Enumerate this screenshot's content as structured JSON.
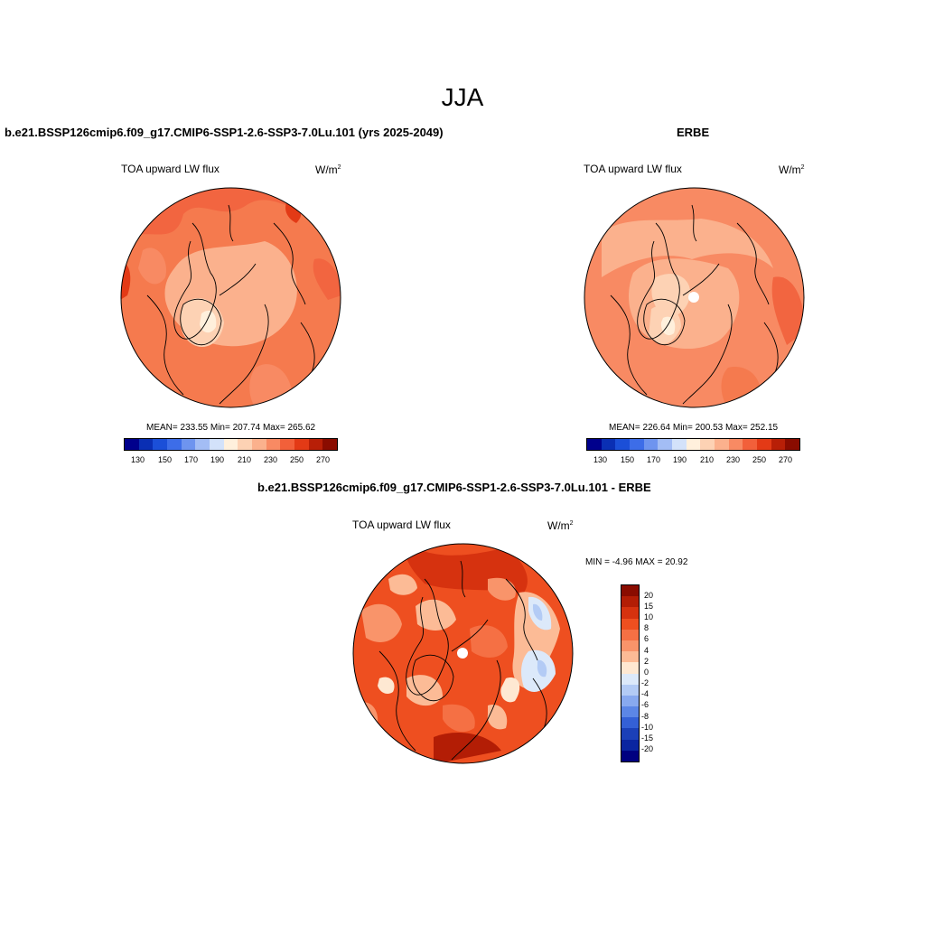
{
  "season": "JJA",
  "panels": [
    {
      "title": "b.e21.BSSP126cmip6.f09_g17.CMIP6-SSP1-2.6-SSP3-7.0Lu.101 (yrs 2025-2049)",
      "variable": "TOA upward LW flux",
      "units_base": "W/m",
      "units_exp": "2",
      "stats": "MEAN= 233.55  Min= 207.74  Max= 265.62",
      "tick_labels": [
        "130",
        "150",
        "170",
        "190",
        "210",
        "230",
        "250",
        "270"
      ]
    },
    {
      "title": "ERBE",
      "variable": "TOA upward LW flux",
      "units_base": "W/m",
      "units_exp": "2",
      "stats": "MEAN= 226.64  Min= 200.53  Max= 252.15",
      "tick_labels": [
        "130",
        "150",
        "170",
        "190",
        "210",
        "230",
        "250",
        "270"
      ]
    },
    {
      "title": "b.e21.BSSP126cmip6.f09_g17.CMIP6-SSP1-2.6-SSP3-7.0Lu.101 - ERBE",
      "variable": "TOA upward LW flux",
      "units_base": "W/m",
      "units_exp": "2",
      "stats": "MIN =  -4.96 MAX =  20.92",
      "tick_labels": [
        "20",
        "15",
        "10",
        "8",
        "6",
        "4",
        "2",
        "0",
        "-2",
        "-4",
        "-6",
        "-8",
        "-10",
        "-15",
        "-20"
      ]
    }
  ],
  "colors": {
    "abs_scale": [
      "#00008c",
      "#0a2fb4",
      "#1b4fd8",
      "#3d6de8",
      "#6e94ef",
      "#a3bdf5",
      "#d3e2fa",
      "#fff0dc",
      "#fdd2b4",
      "#fbb18d",
      "#f88a63",
      "#f2603a",
      "#e33a16",
      "#b81f07",
      "#8a0c00"
    ],
    "diff_scale": [
      "#8a0c00",
      "#b31d05",
      "#d6320f",
      "#ee4f20",
      "#f57044",
      "#f9946a",
      "#fcbb96",
      "#fee8d2",
      "#dce9fa",
      "#b3cbf5",
      "#88a9ef",
      "#5c86e6",
      "#3460d6",
      "#1b40b8",
      "#0a25a0",
      "#000080"
    ]
  }
}
